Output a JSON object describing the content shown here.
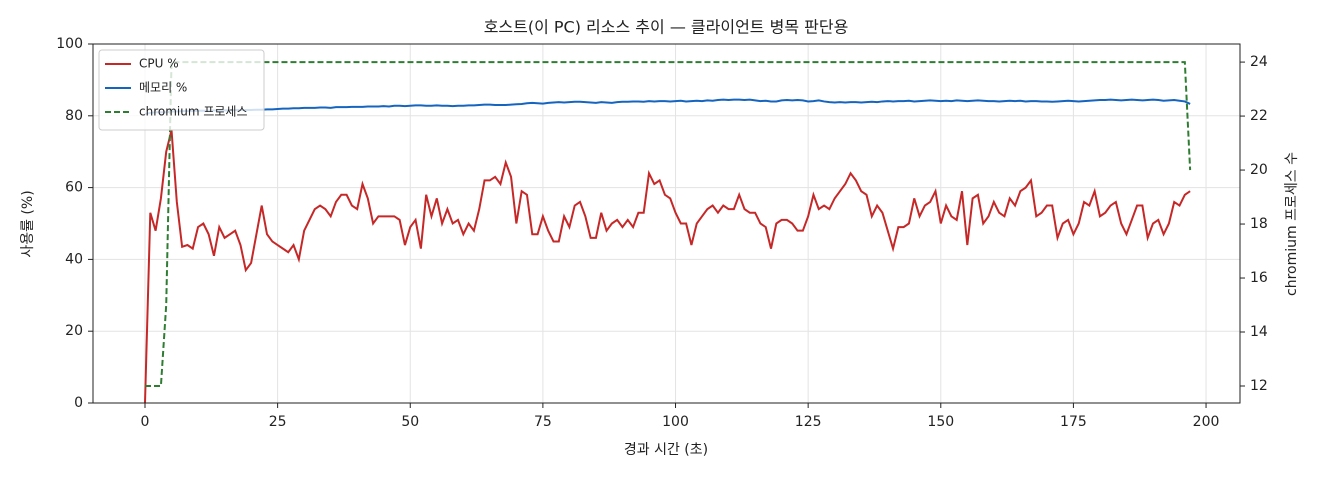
{
  "chart_data": {
    "type": "line",
    "title": "호스트(이 PC) 리소스 추이 — 클라이언트 병목 판단용",
    "x_label": "경과 시간 (초)",
    "y_label": "사용률 (%)",
    "y2_label": "chromium 프로세스 수",
    "xlim": [
      -9.8,
      206.4
    ],
    "ylim": [
      0,
      100
    ],
    "y2lim": [
      11.37,
      24.67
    ],
    "xticks": [
      0,
      25,
      50,
      75,
      100,
      125,
      150,
      175,
      200
    ],
    "yticks": [
      0,
      20,
      40,
      60,
      80,
      100
    ],
    "y2ticks": [
      12,
      14,
      16,
      18,
      20,
      22,
      24
    ],
    "grid": true,
    "legend": "upper left",
    "x": [
      0,
      1,
      2,
      3,
      4,
      5,
      6,
      7,
      8,
      9,
      10,
      11,
      12,
      13,
      14,
      15,
      16,
      17,
      18,
      19,
      20,
      21,
      22,
      23,
      24,
      25,
      26,
      27,
      28,
      29,
      30,
      31,
      32,
      33,
      34,
      35,
      36,
      37,
      38,
      39,
      40,
      41,
      42,
      43,
      44,
      45,
      46,
      47,
      48,
      49,
      50,
      51,
      52,
      53,
      54,
      55,
      56,
      57,
      58,
      59,
      60,
      61,
      62,
      63,
      64,
      65,
      66,
      67,
      68,
      69,
      70,
      71,
      72,
      73,
      74,
      75,
      76,
      77,
      78,
      79,
      80,
      81,
      82,
      83,
      84,
      85,
      86,
      87,
      88,
      89,
      90,
      91,
      92,
      93,
      94,
      95,
      96,
      97,
      98,
      99,
      100,
      101,
      102,
      103,
      104,
      105,
      106,
      107,
      108,
      109,
      110,
      111,
      112,
      113,
      114,
      115,
      116,
      117,
      118,
      119,
      120,
      121,
      122,
      123,
      124,
      125,
      126,
      127,
      128,
      129,
      130,
      131,
      132,
      133,
      134,
      135,
      136,
      137,
      138,
      139,
      140,
      141,
      142,
      143,
      144,
      145,
      146,
      147,
      148,
      149,
      150,
      151,
      152,
      153,
      154,
      155,
      156,
      157,
      158,
      159,
      160,
      161,
      162,
      163,
      164,
      165,
      166,
      167,
      168,
      169,
      170,
      171,
      172,
      173,
      174,
      175,
      176,
      177,
      178,
      179,
      180,
      181,
      182,
      183,
      184,
      185,
      186,
      187,
      188,
      189,
      190,
      191,
      192,
      193,
      194,
      195,
      196,
      197
    ],
    "series": [
      {
        "name": "CPU %",
        "color": "#c62828",
        "dash": false,
        "values": [
          0,
          53,
          48,
          57,
          70,
          76,
          56,
          43.5,
          44,
          43,
          49,
          50,
          47,
          41,
          49,
          46,
          47,
          48,
          44,
          37,
          39,
          47,
          55,
          47,
          45,
          44,
          43,
          42,
          44,
          40,
          48,
          51,
          54,
          55,
          54,
          52,
          56,
          58,
          58,
          55,
          54,
          61,
          57,
          50,
          52,
          52,
          52,
          52,
          51,
          44,
          49,
          51,
          43,
          58,
          52,
          57,
          50,
          54,
          50,
          51,
          47,
          50,
          48,
          54,
          62,
          62,
          63,
          61,
          67,
          63,
          50,
          59,
          58,
          47,
          47,
          52,
          48,
          45,
          45,
          52,
          49,
          55,
          56,
          52,
          46,
          46,
          53,
          48,
          50,
          51,
          49,
          51,
          49,
          53,
          53,
          64,
          61,
          62,
          58,
          57,
          53,
          50,
          50,
          44,
          50,
          52,
          54,
          55,
          53,
          55,
          54,
          54,
          58,
          54,
          53,
          53,
          50,
          49,
          43,
          50,
          51,
          51,
          50,
          48,
          48,
          52,
          58,
          54,
          55,
          54,
          57,
          59,
          61,
          64,
          62,
          59,
          58,
          52,
          55,
          53,
          48,
          43,
          49,
          49,
          50,
          57,
          52,
          55,
          56,
          59,
          50,
          55,
          52,
          51,
          59,
          44,
          57,
          58,
          50,
          52,
          56,
          53,
          52,
          57,
          55,
          59,
          60,
          62,
          52,
          53,
          55,
          55,
          46,
          50,
          51,
          47,
          50,
          56,
          55,
          59,
          52,
          53,
          55,
          56,
          50,
          47,
          51,
          55,
          55,
          46,
          50,
          51,
          47,
          50,
          56,
          55,
          58,
          59
        ]
      },
      {
        "name": "메모리 %",
        "color": "#1565c0",
        "dash": false,
        "values": [
          80.5,
          80.8,
          81,
          81,
          81,
          81.2,
          81.2,
          81.3,
          81.3,
          81.3,
          81.4,
          81.4,
          81.4,
          81.5,
          81.5,
          81.5,
          81.5,
          81.6,
          81.6,
          81.6,
          81.6,
          81.7,
          81.7,
          81.8,
          81.8,
          81.9,
          82,
          82,
          82.1,
          82.1,
          82.2,
          82.2,
          82.2,
          82.3,
          82.3,
          82.2,
          82.4,
          82.4,
          82.4,
          82.5,
          82.5,
          82.5,
          82.6,
          82.6,
          82.6,
          82.7,
          82.6,
          82.8,
          82.8,
          82.7,
          82.8,
          82.9,
          82.9,
          82.8,
          82.8,
          82.9,
          82.8,
          82.8,
          82.7,
          82.8,
          82.8,
          82.9,
          82.9,
          83,
          83.1,
          83.1,
          83,
          83,
          83,
          83.1,
          83.2,
          83.3,
          83.5,
          83.6,
          83.5,
          83.4,
          83.6,
          83.7,
          83.8,
          83.7,
          83.8,
          83.9,
          83.9,
          83.8,
          83.7,
          83.6,
          83.8,
          83.7,
          83.6,
          83.8,
          83.9,
          83.9,
          84,
          84,
          83.9,
          84.1,
          84,
          84.1,
          84.1,
          84,
          84.1,
          84.2,
          84,
          84.1,
          84.2,
          84.1,
          84.3,
          84.2,
          84.4,
          84.5,
          84.4,
          84.5,
          84.5,
          84.4,
          84.5,
          84.3,
          84.1,
          84.2,
          84,
          84,
          84.3,
          84.4,
          84.3,
          84.4,
          84.3,
          84,
          84.1,
          84.3,
          84,
          83.8,
          83.7,
          83.8,
          83.7,
          83.8,
          83.8,
          83.7,
          83.8,
          83.9,
          83.8,
          84,
          84.1,
          84,
          84.1,
          84.1,
          84.2,
          84,
          84.1,
          84.2,
          84.3,
          84.2,
          84.1,
          84.2,
          84.1,
          84.3,
          84.2,
          84.1,
          84.2,
          84.3,
          84.2,
          84.1,
          84.1,
          84,
          84.1,
          84.2,
          84.1,
          84.2,
          84,
          84.1,
          84.1,
          84,
          84,
          83.9,
          84,
          84.1,
          84.2,
          84.1,
          84,
          84.1,
          84.2,
          84.3,
          84.4,
          84.4,
          84.5,
          84.4,
          84.3,
          84.4,
          84.5,
          84.4,
          84.3,
          84.4,
          84.5,
          84.4,
          84.2,
          84.3,
          84.4,
          84.2,
          84,
          83.3
        ]
      },
      {
        "name": "chromium 프로세스",
        "color": "#2e7d32",
        "dash": true,
        "axis": "y2",
        "values": [
          12,
          12,
          12,
          12,
          15,
          24,
          24,
          24,
          24,
          24,
          24,
          24,
          24,
          24,
          24,
          24,
          24,
          24,
          24,
          24,
          24,
          24,
          24,
          24,
          24,
          24,
          24,
          24,
          24,
          24,
          24,
          24,
          24,
          24,
          24,
          24,
          24,
          24,
          24,
          24,
          24,
          24,
          24,
          24,
          24,
          24,
          24,
          24,
          24,
          24,
          24,
          24,
          24,
          24,
          24,
          24,
          24,
          24,
          24,
          24,
          24,
          24,
          24,
          24,
          24,
          24,
          24,
          24,
          24,
          24,
          24,
          24,
          24,
          24,
          24,
          24,
          24,
          24,
          24,
          24,
          24,
          24,
          24,
          24,
          24,
          24,
          24,
          24,
          24,
          24,
          24,
          24,
          24,
          24,
          24,
          24,
          24,
          24,
          24,
          24,
          24,
          24,
          24,
          24,
          24,
          24,
          24,
          24,
          24,
          24,
          24,
          24,
          24,
          24,
          24,
          24,
          24,
          24,
          24,
          24,
          24,
          24,
          24,
          24,
          24,
          24,
          24,
          24,
          24,
          24,
          24,
          24,
          24,
          24,
          24,
          24,
          24,
          24,
          24,
          24,
          24,
          24,
          24,
          24,
          24,
          24,
          24,
          24,
          24,
          24,
          24,
          24,
          24,
          24,
          24,
          24,
          24,
          24,
          24,
          24,
          24,
          24,
          24,
          24,
          24,
          24,
          24,
          24,
          24,
          24,
          24,
          24,
          24,
          24,
          24,
          24,
          24,
          24,
          24,
          24,
          24,
          24,
          24,
          24,
          24,
          24,
          24,
          24,
          24,
          24,
          24,
          24,
          24,
          24,
          24,
          24,
          24,
          20
        ]
      }
    ]
  }
}
